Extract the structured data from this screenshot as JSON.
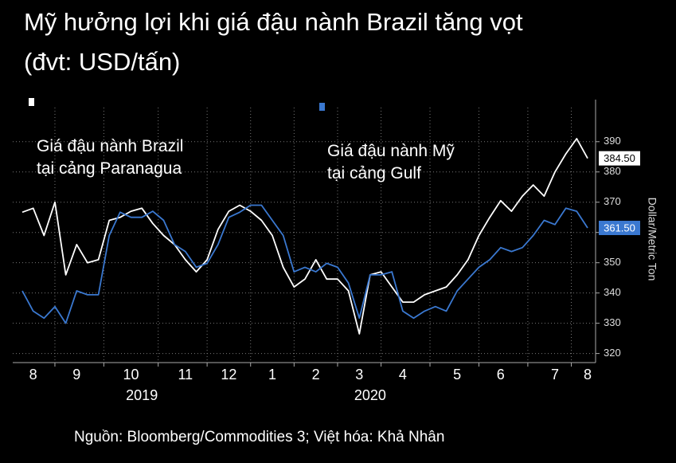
{
  "chart_data": {
    "type": "line",
    "title": "Mỹ hưởng lợi khi giá đậu nành Brazil tăng vọt",
    "subtitle": "(đvt: USD/tấn)",
    "y_axis_label": "Dollar/Metric Ton",
    "source": "Nguồn: Bloomberg/Commodities 3; Việt hóa: Khả Nhân",
    "years": [
      "2019",
      "2020"
    ],
    "categories": [
      null,
      "8",
      null,
      null,
      null,
      "9",
      null,
      null,
      null,
      null,
      "10",
      null,
      null,
      null,
      null,
      "11",
      null,
      null,
      null,
      "12",
      null,
      null,
      null,
      "1",
      null,
      null,
      null,
      "2",
      null,
      null,
      null,
      "3",
      null,
      null,
      null,
      "4",
      null,
      null,
      null,
      null,
      "5",
      null,
      null,
      null,
      "6",
      null,
      null,
      null,
      null,
      "7",
      null,
      null,
      "8"
    ],
    "series": [
      {
        "name": "Giá đậu nành Brazil\ntại cảng Paranagua",
        "color": "#ffffff",
        "end_label": "384.50",
        "values": [
          366.7,
          368,
          359,
          370,
          346,
          356,
          350,
          351,
          364,
          365,
          367,
          368,
          363,
          359,
          356,
          351,
          347,
          351,
          361,
          367,
          369,
          367,
          364,
          359,
          348.5,
          342,
          344.6,
          351,
          344.6,
          344.6,
          340.7,
          326.5,
          346,
          347,
          342,
          337,
          337,
          339.4,
          340.7,
          342,
          346,
          351,
          359,
          365,
          370.5,
          367,
          372,
          375.7,
          372,
          380,
          386,
          391,
          384.5
        ]
      },
      {
        "name": "Giá đậu nành Mỹ\ntại cảng Gulf",
        "color": "#3a78d0",
        "end_label": "361.50",
        "values": [
          340.7,
          334,
          331.7,
          335.5,
          330,
          340.7,
          339.4,
          339.4,
          359,
          366.7,
          365,
          365,
          367,
          364,
          356,
          353.7,
          348.5,
          349.8,
          356,
          365,
          366.7,
          369,
          369,
          364,
          359,
          347,
          348.5,
          347,
          349.8,
          348.5,
          343.3,
          331.7,
          346,
          346,
          347,
          334,
          331.7,
          334,
          335.5,
          334,
          340.7,
          344.6,
          348.5,
          351,
          355,
          353.7,
          355,
          359,
          364,
          362.6,
          368,
          367,
          361.5
        ]
      }
    ],
    "ylim": [
      317,
      396
    ],
    "yticks": [
      320,
      330,
      340,
      350,
      360,
      370,
      380,
      390
    ],
    "grid": true
  }
}
